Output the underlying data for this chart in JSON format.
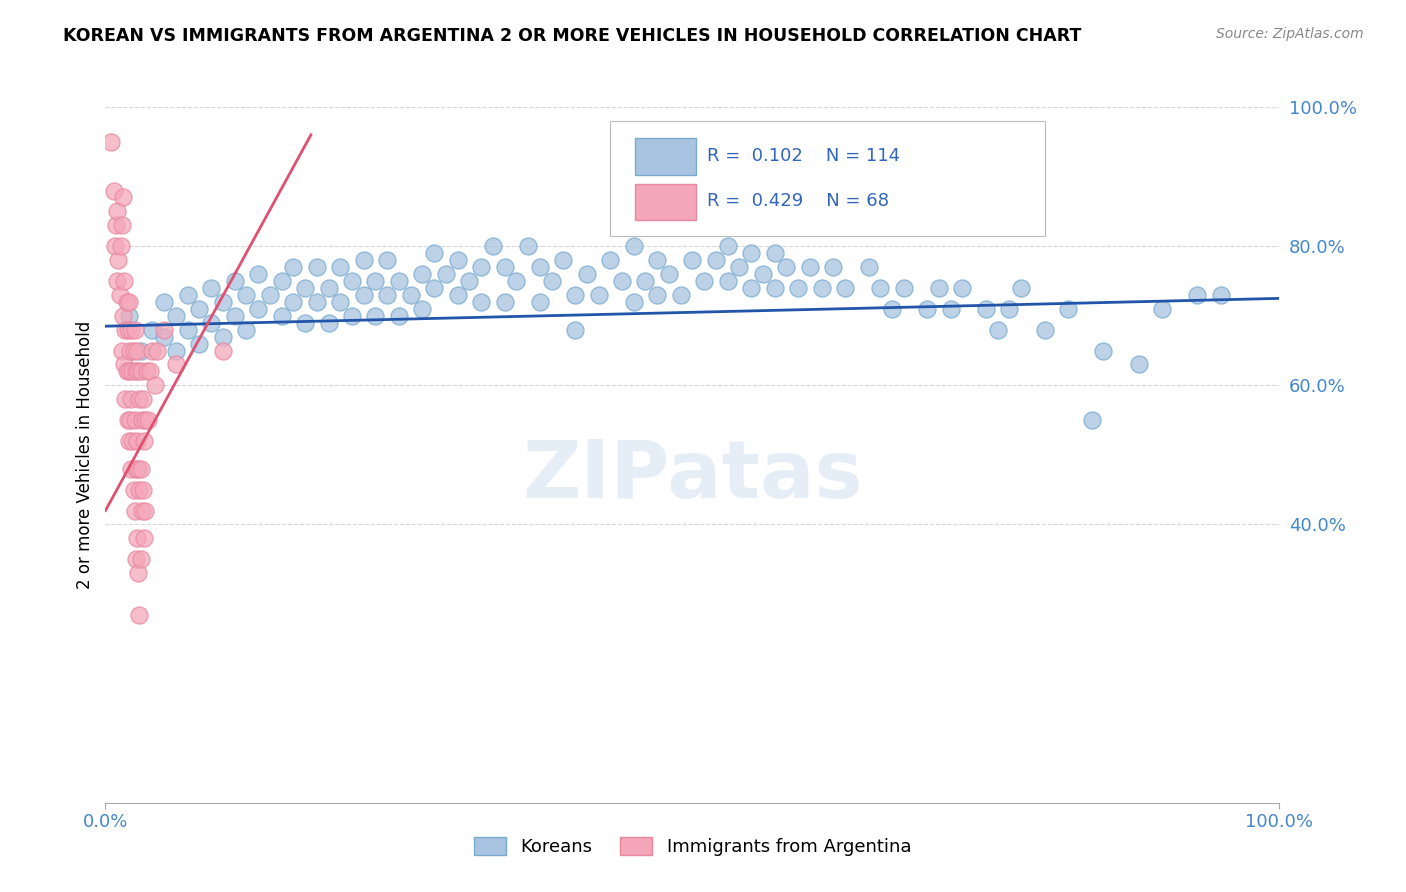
{
  "title": "KOREAN VS IMMIGRANTS FROM ARGENTINA 2 OR MORE VEHICLES IN HOUSEHOLD CORRELATION CHART",
  "source": "Source: ZipAtlas.com",
  "ylabel": "2 or more Vehicles in Household",
  "xlim": [
    0,
    1.0
  ],
  "ylim": [
    0,
    1.0
  ],
  "legend_labels": [
    "Koreans",
    "Immigrants from Argentina"
  ],
  "blue_R": 0.102,
  "blue_N": 114,
  "pink_R": 0.429,
  "pink_N": 68,
  "blue_color": "#a8c4e0",
  "pink_color": "#f4a7b9",
  "blue_line_color": "#2255aa",
  "pink_line_color": "#e05070",
  "watermark": "ZIPatas",
  "blue_scatter": [
    [
      0.02,
      0.7
    ],
    [
      0.03,
      0.65
    ],
    [
      0.04,
      0.68
    ],
    [
      0.05,
      0.72
    ],
    [
      0.05,
      0.67
    ],
    [
      0.06,
      0.7
    ],
    [
      0.06,
      0.65
    ],
    [
      0.07,
      0.73
    ],
    [
      0.07,
      0.68
    ],
    [
      0.08,
      0.71
    ],
    [
      0.08,
      0.66
    ],
    [
      0.09,
      0.74
    ],
    [
      0.09,
      0.69
    ],
    [
      0.1,
      0.72
    ],
    [
      0.1,
      0.67
    ],
    [
      0.11,
      0.75
    ],
    [
      0.11,
      0.7
    ],
    [
      0.12,
      0.73
    ],
    [
      0.12,
      0.68
    ],
    [
      0.13,
      0.71
    ],
    [
      0.13,
      0.76
    ],
    [
      0.14,
      0.73
    ],
    [
      0.15,
      0.7
    ],
    [
      0.15,
      0.75
    ],
    [
      0.16,
      0.72
    ],
    [
      0.16,
      0.77
    ],
    [
      0.17,
      0.74
    ],
    [
      0.17,
      0.69
    ],
    [
      0.18,
      0.72
    ],
    [
      0.18,
      0.77
    ],
    [
      0.19,
      0.74
    ],
    [
      0.19,
      0.69
    ],
    [
      0.2,
      0.77
    ],
    [
      0.2,
      0.72
    ],
    [
      0.21,
      0.75
    ],
    [
      0.21,
      0.7
    ],
    [
      0.22,
      0.73
    ],
    [
      0.22,
      0.78
    ],
    [
      0.23,
      0.75
    ],
    [
      0.23,
      0.7
    ],
    [
      0.24,
      0.73
    ],
    [
      0.24,
      0.78
    ],
    [
      0.25,
      0.75
    ],
    [
      0.25,
      0.7
    ],
    [
      0.26,
      0.73
    ],
    [
      0.27,
      0.76
    ],
    [
      0.27,
      0.71
    ],
    [
      0.28,
      0.74
    ],
    [
      0.28,
      0.79
    ],
    [
      0.29,
      0.76
    ],
    [
      0.3,
      0.73
    ],
    [
      0.3,
      0.78
    ],
    [
      0.31,
      0.75
    ],
    [
      0.32,
      0.72
    ],
    [
      0.32,
      0.77
    ],
    [
      0.33,
      0.8
    ],
    [
      0.34,
      0.77
    ],
    [
      0.34,
      0.72
    ],
    [
      0.35,
      0.75
    ],
    [
      0.36,
      0.8
    ],
    [
      0.37,
      0.77
    ],
    [
      0.37,
      0.72
    ],
    [
      0.38,
      0.75
    ],
    [
      0.39,
      0.78
    ],
    [
      0.4,
      0.73
    ],
    [
      0.4,
      0.68
    ],
    [
      0.41,
      0.76
    ],
    [
      0.42,
      0.73
    ],
    [
      0.43,
      0.78
    ],
    [
      0.44,
      0.75
    ],
    [
      0.45,
      0.8
    ],
    [
      0.45,
      0.72
    ],
    [
      0.46,
      0.75
    ],
    [
      0.47,
      0.78
    ],
    [
      0.47,
      0.73
    ],
    [
      0.48,
      0.76
    ],
    [
      0.49,
      0.73
    ],
    [
      0.5,
      0.78
    ],
    [
      0.5,
      0.85
    ],
    [
      0.51,
      0.75
    ],
    [
      0.52,
      0.78
    ],
    [
      0.53,
      0.75
    ],
    [
      0.53,
      0.8
    ],
    [
      0.54,
      0.77
    ],
    [
      0.55,
      0.74
    ],
    [
      0.55,
      0.79
    ],
    [
      0.56,
      0.76
    ],
    [
      0.57,
      0.79
    ],
    [
      0.57,
      0.74
    ],
    [
      0.58,
      0.77
    ],
    [
      0.59,
      0.74
    ],
    [
      0.6,
      0.77
    ],
    [
      0.61,
      0.74
    ],
    [
      0.62,
      0.77
    ],
    [
      0.63,
      0.74
    ],
    [
      0.65,
      0.77
    ],
    [
      0.66,
      0.74
    ],
    [
      0.67,
      0.71
    ],
    [
      0.68,
      0.74
    ],
    [
      0.7,
      0.71
    ],
    [
      0.71,
      0.74
    ],
    [
      0.72,
      0.71
    ],
    [
      0.73,
      0.74
    ],
    [
      0.75,
      0.71
    ],
    [
      0.76,
      0.68
    ],
    [
      0.77,
      0.71
    ],
    [
      0.78,
      0.74
    ],
    [
      0.8,
      0.68
    ],
    [
      0.82,
      0.71
    ],
    [
      0.84,
      0.55
    ],
    [
      0.85,
      0.65
    ],
    [
      0.88,
      0.63
    ],
    [
      0.9,
      0.71
    ],
    [
      0.93,
      0.73
    ],
    [
      0.95,
      0.73
    ]
  ],
  "pink_scatter": [
    [
      0.005,
      0.95
    ],
    [
      0.007,
      0.88
    ],
    [
      0.008,
      0.8
    ],
    [
      0.009,
      0.83
    ],
    [
      0.01,
      0.75
    ],
    [
      0.01,
      0.85
    ],
    [
      0.011,
      0.78
    ],
    [
      0.012,
      0.73
    ],
    [
      0.013,
      0.8
    ],
    [
      0.014,
      0.83
    ],
    [
      0.014,
      0.65
    ],
    [
      0.015,
      0.87
    ],
    [
      0.015,
      0.7
    ],
    [
      0.016,
      0.63
    ],
    [
      0.016,
      0.75
    ],
    [
      0.017,
      0.68
    ],
    [
      0.017,
      0.58
    ],
    [
      0.018,
      0.72
    ],
    [
      0.018,
      0.62
    ],
    [
      0.019,
      0.55
    ],
    [
      0.019,
      0.68
    ],
    [
      0.02,
      0.72
    ],
    [
      0.02,
      0.62
    ],
    [
      0.02,
      0.52
    ],
    [
      0.021,
      0.65
    ],
    [
      0.021,
      0.55
    ],
    [
      0.022,
      0.68
    ],
    [
      0.022,
      0.58
    ],
    [
      0.022,
      0.48
    ],
    [
      0.023,
      0.62
    ],
    [
      0.023,
      0.52
    ],
    [
      0.024,
      0.65
    ],
    [
      0.024,
      0.45
    ],
    [
      0.025,
      0.68
    ],
    [
      0.025,
      0.55
    ],
    [
      0.025,
      0.42
    ],
    [
      0.026,
      0.62
    ],
    [
      0.026,
      0.48
    ],
    [
      0.026,
      0.35
    ],
    [
      0.027,
      0.65
    ],
    [
      0.027,
      0.52
    ],
    [
      0.027,
      0.38
    ],
    [
      0.028,
      0.62
    ],
    [
      0.028,
      0.48
    ],
    [
      0.028,
      0.33
    ],
    [
      0.029,
      0.58
    ],
    [
      0.029,
      0.45
    ],
    [
      0.029,
      0.27
    ],
    [
      0.03,
      0.62
    ],
    [
      0.03,
      0.48
    ],
    [
      0.03,
      0.35
    ],
    [
      0.031,
      0.55
    ],
    [
      0.031,
      0.42
    ],
    [
      0.032,
      0.58
    ],
    [
      0.032,
      0.45
    ],
    [
      0.033,
      0.52
    ],
    [
      0.033,
      0.38
    ],
    [
      0.034,
      0.55
    ],
    [
      0.034,
      0.42
    ],
    [
      0.035,
      0.62
    ],
    [
      0.036,
      0.55
    ],
    [
      0.038,
      0.62
    ],
    [
      0.04,
      0.65
    ],
    [
      0.042,
      0.6
    ],
    [
      0.044,
      0.65
    ],
    [
      0.05,
      0.68
    ],
    [
      0.06,
      0.63
    ],
    [
      0.1,
      0.65
    ]
  ],
  "blue_line_x": [
    0.0,
    1.0
  ],
  "blue_line_y": [
    0.685,
    0.725
  ],
  "pink_line_x": [
    0.0,
    0.175
  ],
  "pink_line_y": [
    0.42,
    0.96
  ]
}
